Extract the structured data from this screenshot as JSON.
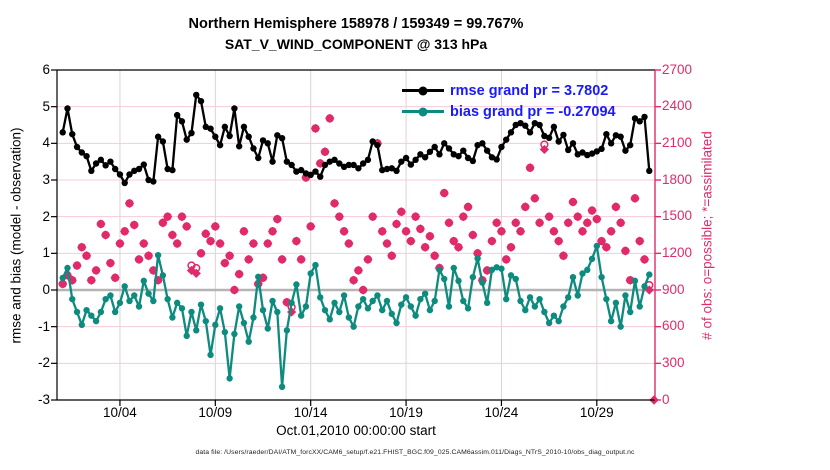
{
  "title": {
    "line1": "Northern Hemisphere 158978 / 159349 = 99.767%",
    "line2": "SAT_V_WIND_COMPONENT @ 313 hPa"
  },
  "axes": {
    "left_label": "rmse and bias (model - observation)",
    "right_label": "# of obs: o=possible; *=assimilated",
    "x_label": "Oct.01,2010 00:00:00 start"
  },
  "legend": {
    "rmse_label": "rmse grand pr = 3.7802",
    "bias_label": "bias grand pr = -0.27094",
    "text_color": "#1a1aff"
  },
  "footer": "data file: /Users/raeder/DAI/ATM_forcXX/CAM6_setup/f.e21.FHIST_BGC.f09_025.CAM6assim.011/Diags_NTrS_2010-10/obs_diag_output.nc",
  "chart_data": {
    "type": "line",
    "title": "Northern Hemisphere 158978 / 159349 = 99.767% — SAT_V_WIND_COMPONENT @ 313 hPa",
    "x_range": [
      -0.3,
      31.05
    ],
    "y_left_range": [
      -3,
      6
    ],
    "y_right_range": [
      0,
      2700
    ],
    "y_left_ticks": [
      6,
      5,
      4,
      3,
      2,
      1,
      0,
      -1,
      -2,
      -3
    ],
    "y_right_ticks": [
      2700,
      2400,
      2100,
      1800,
      1500,
      1200,
      900,
      600,
      300,
      0
    ],
    "x_ticks": [
      {
        "day": 3,
        "label": "10/04"
      },
      {
        "day": 8,
        "label": "10/09"
      },
      {
        "day": 13,
        "label": "10/14"
      },
      {
        "day": 18,
        "label": "10/19"
      },
      {
        "day": 23,
        "label": "10/24"
      },
      {
        "day": 28,
        "label": "10/29"
      }
    ],
    "time_start_day": 0,
    "time_step_days": 0.25,
    "grid_color_h": "#f6ccd9",
    "grid_color_v": "#ded2d6",
    "zero_line_color": "#b4b4b4",
    "obs_color": "#e12a6a",
    "rmse_grand_prior": 3.7802,
    "bias_grand_prior": -0.27094,
    "series": [
      {
        "name": "rmse",
        "color": "#000000",
        "marker": "dot",
        "values": [
          4.3,
          4.95,
          4.25,
          3.9,
          3.75,
          3.65,
          3.25,
          3.45,
          3.55,
          3.4,
          3.5,
          3.3,
          3.15,
          2.92,
          3.15,
          3.25,
          3.3,
          3.42,
          3.0,
          2.96,
          4.18,
          4.05,
          3.3,
          3.27,
          4.77,
          4.6,
          4.1,
          4.28,
          5.32,
          5.15,
          4.45,
          4.4,
          4.18,
          3.95,
          4.45,
          4.2,
          4.95,
          3.92,
          4.45,
          4.18,
          3.86,
          3.6,
          4.08,
          4.0,
          3.5,
          4.22,
          4.14,
          3.5,
          3.41,
          3.23,
          3.27,
          3.18,
          3.14,
          3.23,
          3.09,
          3.41,
          3.5,
          3.55,
          3.45,
          3.36,
          3.41,
          3.41,
          3.32,
          3.45,
          3.55,
          4.05,
          3.95,
          3.27,
          3.3,
          3.32,
          3.25,
          3.5,
          3.6,
          3.42,
          3.55,
          3.7,
          3.62,
          3.77,
          3.9,
          3.7,
          4.0,
          3.86,
          3.7,
          3.65,
          3.8,
          3.6,
          3.52,
          3.95,
          4.0,
          3.8,
          3.62,
          3.56,
          3.9,
          4.1,
          4.3,
          4.5,
          4.55,
          4.48,
          4.3,
          4.55,
          4.5,
          4.2,
          4.15,
          4.45,
          4.05,
          4.23,
          3.82,
          4.0,
          3.7,
          3.75,
          3.68,
          3.72,
          3.78,
          3.85,
          4.25,
          4.0,
          4.22,
          4.18,
          3.8,
          3.95,
          4.68,
          4.6,
          4.72,
          3.25
        ]
      },
      {
        "name": "bias",
        "color": "#0e8b7f",
        "marker": "dot",
        "values": [
          0.33,
          0.6,
          -0.25,
          -0.6,
          -0.95,
          -0.55,
          -0.7,
          -0.85,
          -0.6,
          -0.25,
          -0.15,
          -0.6,
          -0.35,
          0.1,
          -0.3,
          -0.15,
          -0.45,
          0.25,
          -0.1,
          -0.3,
          0.95,
          0.4,
          -0.25,
          -0.75,
          -0.35,
          -0.5,
          -1.25,
          -0.6,
          -1.1,
          -0.4,
          -0.85,
          -1.77,
          -0.95,
          -0.5,
          -1.15,
          -2.41,
          -1.2,
          -0.45,
          -0.9,
          -1.41,
          -0.75,
          0.36,
          -0.55,
          -1.05,
          -0.3,
          -0.6,
          -2.64,
          -1.1,
          -0.35,
          0.15,
          -0.7,
          -0.45,
          0.45,
          0.68,
          -0.2,
          -0.55,
          -0.8,
          -0.35,
          -0.6,
          -0.15,
          -0.75,
          -1.0,
          -0.45,
          -0.25,
          -0.5,
          -0.3,
          -0.15,
          -0.55,
          -0.3,
          -0.65,
          -0.9,
          -0.4,
          -0.2,
          -0.45,
          -0.7,
          -0.25,
          -0.1,
          -0.55,
          -0.3,
          0.55,
          0.3,
          -0.45,
          0.6,
          0.25,
          -0.3,
          -0.5,
          0.35,
          0.86,
          0.2,
          -0.35,
          0.55,
          0.62,
          0.58,
          -0.25,
          0.4,
          0.3,
          -0.3,
          -0.55,
          -0.2,
          -0.45,
          -0.25,
          -0.6,
          -0.9,
          -0.7,
          -0.85,
          -0.45,
          -0.2,
          0.35,
          -0.15,
          0.45,
          0.55,
          0.85,
          1.2,
          0.35,
          -0.25,
          -0.85,
          -0.35,
          -1.0,
          -0.15,
          -0.6,
          0.25,
          -0.45,
          0.1,
          0.42
        ]
      },
      {
        "name": "possible",
        "color": "#e12a6a",
        "marker": "circle",
        "values": [
          950,
          1020,
          980,
          1100,
          1250,
          1180,
          980,
          1060,
          1440,
          1350,
          1120,
          1000,
          1280,
          1380,
          1609,
          1432,
          1150,
          1280,
          1180,
          1060,
          980,
          1450,
          1500,
          1350,
          1280,
          1500,
          1420,
          1100,
          1080,
          1200,
          1360,
          1300,
          1420,
          1280,
          1120,
          1180,
          900,
          1030,
          1380,
          1150,
          1280,
          950,
          1000,
          1280,
          1380,
          1480,
          1150,
          800,
          760,
          1300,
          1150,
          1820,
          1420,
          2222,
          1936,
          2031,
          2304,
          1609,
          1500,
          1380,
          1280,
          980,
          1060,
          900,
          1150,
          1500,
          2100,
          1380,
          1280,
          1180,
          1440,
          1540,
          1380,
          1300,
          1500,
          1400,
          1250,
          1340,
          1180,
          1080,
          1693,
          1450,
          1300,
          1250,
          1500,
          1580,
          1350,
          1200,
          980,
          1060,
          1300,
          1450,
          1380,
          1150,
          1250,
          1450,
          1380,
          1580,
          1900,
          1650,
          1450,
          2090,
          1500,
          1380,
          1300,
          1180,
          1450,
          1620,
          1500,
          1380,
          1450,
          1550,
          1480,
          1300,
          1250,
          1380,
          1580,
          1450,
          1220,
          980,
          1650,
          1300,
          1150,
          940
        ]
      },
      {
        "name": "assimilated",
        "color": "#e12a6a",
        "marker": "diamond",
        "values": [
          950,
          1020,
          980,
          1100,
          1250,
          1180,
          980,
          1060,
          1440,
          1350,
          1120,
          1000,
          1280,
          1380,
          1609,
          1432,
          1150,
          1280,
          1180,
          1060,
          980,
          1450,
          1500,
          1350,
          1280,
          1500,
          1420,
          1060,
          1036,
          1200,
          1360,
          1300,
          1420,
          1280,
          1120,
          1180,
          900,
          1030,
          1380,
          1150,
          1280,
          950,
          1000,
          1280,
          1380,
          1480,
          1150,
          800,
          720,
          1300,
          1150,
          1820,
          1420,
          2222,
          1936,
          2031,
          2304,
          1609,
          1500,
          1380,
          1280,
          980,
          1060,
          900,
          1150,
          1500,
          2100,
          1380,
          1280,
          1180,
          1440,
          1540,
          1380,
          1300,
          1500,
          1400,
          1250,
          1340,
          1180,
          1080,
          1693,
          1450,
          1300,
          1250,
          1500,
          1580,
          1350,
          1200,
          980,
          1060,
          1300,
          1450,
          1380,
          1150,
          1250,
          1450,
          1380,
          1580,
          1900,
          1650,
          1450,
          2050,
          1500,
          1380,
          1300,
          1180,
          1450,
          1620,
          1500,
          1380,
          1450,
          1550,
          1480,
          1300,
          1250,
          1380,
          1580,
          1450,
          1220,
          980,
          1650,
          1300,
          1150,
          900
        ]
      }
    ],
    "final_marker": {
      "time_day": 31.0,
      "count": 0
    }
  }
}
